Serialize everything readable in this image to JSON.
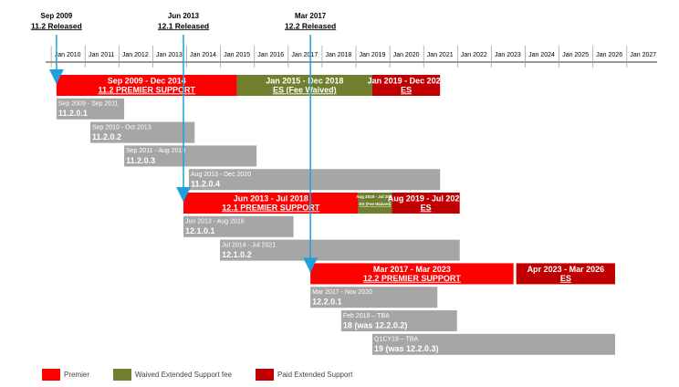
{
  "chart_data": {
    "type": "timeline",
    "xlim": [
      2009.08,
      2027.41
    ],
    "xticks": [
      {
        "value": 2010,
        "label": "Jan 2010"
      },
      {
        "value": 2011,
        "label": "Jan 2011"
      },
      {
        "value": 2012,
        "label": "Jan 2012"
      },
      {
        "value": 2013,
        "label": "Jan 2013"
      },
      {
        "value": 2014,
        "label": "Jan 2014"
      },
      {
        "value": 2015,
        "label": "Jan 2015"
      },
      {
        "value": 2016,
        "label": "Jan 2016"
      },
      {
        "value": 2017,
        "label": "Jan 2017"
      },
      {
        "value": 2018,
        "label": "Jan 2018"
      },
      {
        "value": 2019,
        "label": "Jan 2019"
      },
      {
        "value": 2020,
        "label": "Jan 2020"
      },
      {
        "value": 2021,
        "label": "Jan 2021"
      },
      {
        "value": 2022,
        "label": "Jan 2022"
      },
      {
        "value": 2023,
        "label": "Jan 2023"
      },
      {
        "value": 2024,
        "label": "Jan 2024"
      },
      {
        "value": 2025,
        "label": "Jan 2025"
      },
      {
        "value": 2026,
        "label": "Jan 2026"
      },
      {
        "value": 2027,
        "label": "Jan 2027"
      }
    ],
    "milestones": [
      {
        "date": "Sep 2009",
        "label": "11.2 Released",
        "value": 2009.67
      },
      {
        "date": "Jun 2013",
        "label": "12.1 Released",
        "value": 2013.42
      },
      {
        "date": "Mar 2017",
        "label": "12.2 Released",
        "value": 2017.17
      }
    ],
    "rows": [
      {
        "bars": [
          {
            "period": "Sep 2009 - Dec 2014",
            "label": "11.2 PREMIER SUPPORT",
            "start": 2009.67,
            "end": 2015.0,
            "color": "#ff0000"
          },
          {
            "period": "Jan 2015 - Dec 2018",
            "label": "ES (Fee Waived)",
            "start": 2015.0,
            "end": 2019.0,
            "color": "#6f7f2e"
          },
          {
            "period": "Jan 2019 - Dec 2020",
            "label": "ES",
            "start": 2019.0,
            "end": 2021.0,
            "color": "#c00000"
          }
        ]
      },
      {
        "bars": [
          {
            "period": "Sep 2009 - Sep 2011",
            "label": "11.2.0.1",
            "start": 2009.67,
            "end": 2011.67,
            "color": "#a6a6a6"
          }
        ]
      },
      {
        "bars": [
          {
            "period": "Sep 2010 - Oct 2013",
            "label": "11.2.0.2",
            "start": 2010.67,
            "end": 2013.75,
            "color": "#a6a6a6"
          }
        ]
      },
      {
        "bars": [
          {
            "period": "Sep 2011 - Aug 2015",
            "label": "11.2.0.3",
            "start": 2011.67,
            "end": 2015.58,
            "color": "#a6a6a6"
          }
        ]
      },
      {
        "bars": [
          {
            "period": "Aug 2013 - Dec 2020",
            "label": "11.2.0.4",
            "start": 2013.58,
            "end": 2021.0,
            "color": "#a6a6a6"
          }
        ]
      },
      {
        "bars": [
          {
            "period": "Jun 2013 - Jul 2018",
            "label": "12.1 PREMIER SUPPORT",
            "start": 2013.42,
            "end": 2018.58,
            "color": "#ff0000"
          },
          {
            "period": "Aug 2018 - Jul 2019",
            "label": "ES (Fee Waived)",
            "start": 2018.58,
            "end": 2019.58,
            "color": "#6f7f2e"
          },
          {
            "period": "Aug 2019 - Jul 2021",
            "label": "ES",
            "start": 2019.58,
            "end": 2021.58,
            "color": "#c00000"
          }
        ]
      },
      {
        "bars": [
          {
            "period": "Jun 2013 - Aug 2016",
            "label": "12.1.0.1",
            "start": 2013.42,
            "end": 2016.67,
            "color": "#a6a6a6"
          }
        ]
      },
      {
        "bars": [
          {
            "period": "Jul 2014 - Jul 2021",
            "label": "12.1.0.2",
            "start": 2014.5,
            "end": 2021.58,
            "color": "#a6a6a6"
          }
        ]
      },
      {
        "bars": [
          {
            "period": "Mar 2017 - Mar 2023",
            "label": "12.2 PREMIER SUPPORT",
            "start": 2017.17,
            "end": 2023.17,
            "color": "#ff0000"
          },
          {
            "period": "Apr 2023 - Mar 2026",
            "label": "ES",
            "start": 2023.25,
            "end": 2026.17,
            "color": "#c00000"
          }
        ]
      },
      {
        "bars": [
          {
            "period": "Mar 2017 - Nov 2020",
            "label": "12.2.0.1",
            "start": 2017.17,
            "end": 2020.92,
            "color": "#a6a6a6"
          }
        ]
      },
      {
        "bars": [
          {
            "period": "Feb 2018 – TBA",
            "label": "18 (was 12.2.0.2)",
            "start": 2018.08,
            "end": 2021.5,
            "color": "#a6a6a6"
          }
        ]
      },
      {
        "bars": [
          {
            "period": "Q1CY19 – TBA",
            "label": "19 (was 12.2.0.3)",
            "start": 2019.0,
            "end": 2026.17,
            "color": "#a6a6a6"
          }
        ]
      }
    ],
    "legend": [
      {
        "name": "Premier",
        "color": "#ff0000"
      },
      {
        "name": "Waived Extended Support fee",
        "color": "#6f7f2e"
      },
      {
        "name": "Paid Extended Support",
        "color": "#c00000"
      }
    ]
  }
}
